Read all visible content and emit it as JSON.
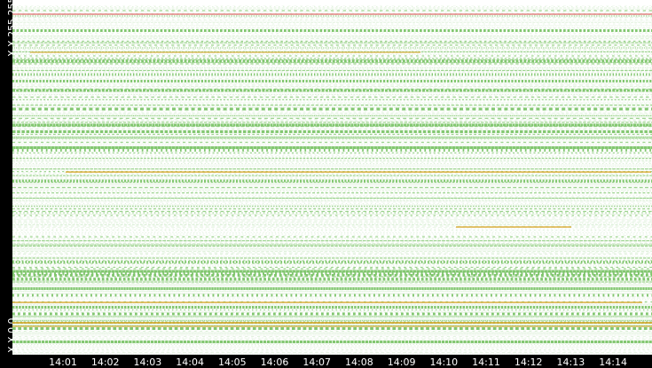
{
  "axis": {
    "y_top_label": "X.X.255.255",
    "y_bottom_label": "X.X.0.0",
    "x_ticks": [
      "14:01",
      "14:02",
      "14:03",
      "14:04",
      "14:05",
      "14:06",
      "14:07",
      "14:08",
      "14:09",
      "14:10",
      "14:11",
      "14:12",
      "14:13",
      "14:14"
    ]
  },
  "colors": {
    "background": "#ffffff",
    "frame": "#000000",
    "activity": "#7dc56a",
    "warning": "#d69f1a",
    "alert": "#d64545"
  }
}
